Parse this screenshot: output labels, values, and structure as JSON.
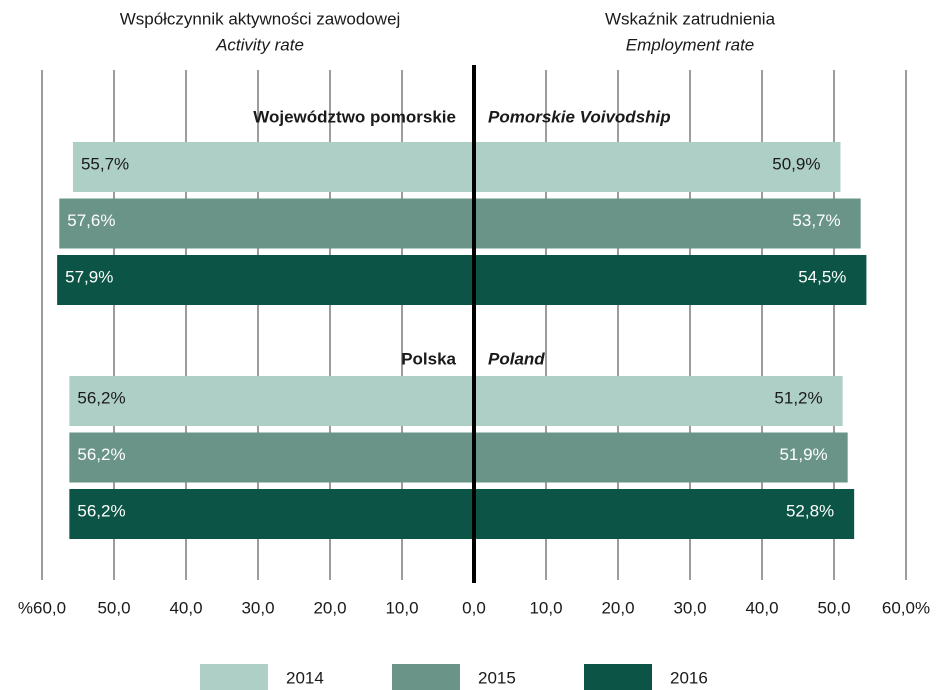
{
  "chart_data": [
    {
      "type": "bar",
      "orientation": "horizontal",
      "title": "Współczynnik aktywności zawodowej",
      "subtitle": "Activity rate",
      "categories": [
        "Województwo pomorskie",
        "Polska"
      ],
      "series": [
        {
          "name": "2014",
          "color": "#aecfc6",
          "values": [
            55.7,
            56.2
          ],
          "value_labels": [
            "55,7%",
            "56,2%"
          ]
        },
        {
          "name": "2015",
          "color": "#6a9488",
          "values": [
            57.6,
            56.2
          ],
          "value_labels": [
            "57,6%",
            "56,2%"
          ]
        },
        {
          "name": "2016",
          "color": "#0b5446",
          "values": [
            57.9,
            56.2
          ],
          "value_labels": [
            "57,9%",
            "56,2%"
          ]
        }
      ],
      "xlim": [
        60,
        0
      ],
      "xticks": [
        {
          "value": 60,
          "label": "%60,0"
        },
        {
          "value": 50,
          "label": "50,0"
        },
        {
          "value": 40,
          "label": "40,0"
        },
        {
          "value": 30,
          "label": "30,0"
        },
        {
          "value": 20,
          "label": "20,0"
        },
        {
          "value": 10,
          "label": "10,0"
        }
      ],
      "grid": true,
      "legend": "bottom"
    },
    {
      "type": "bar",
      "orientation": "horizontal",
      "title": "Wskaźnik zatrudnienia",
      "subtitle": "Employment rate",
      "categories": [
        "Pomorskie Voivodship",
        "Poland"
      ],
      "series": [
        {
          "color": "#aecfc6",
          "values": [
            50.9,
            51.2
          ],
          "value_labels": [
            "50,9%",
            "51,2%"
          ]
        },
        {
          "color": "#6a9488",
          "values": [
            53.7,
            51.9
          ],
          "value_labels": [
            "53,7%",
            "51,9%"
          ]
        },
        {
          "color": "#0b5446",
          "values": [
            54.5,
            52.8
          ],
          "value_labels": [
            "54,5%",
            "52,8%"
          ]
        }
      ],
      "xlim": [
        0,
        60
      ],
      "xticks": [
        {
          "value": 0,
          "label": "0,0"
        },
        {
          "value": 10,
          "label": "10,0"
        },
        {
          "value": 20,
          "label": "20,0"
        },
        {
          "value": 30,
          "label": "30,0"
        },
        {
          "value": 40,
          "label": "40,0"
        },
        {
          "value": 50,
          "label": "50,0"
        },
        {
          "value": 60,
          "label": "60,0%"
        }
      ],
      "grid": true
    }
  ]
}
